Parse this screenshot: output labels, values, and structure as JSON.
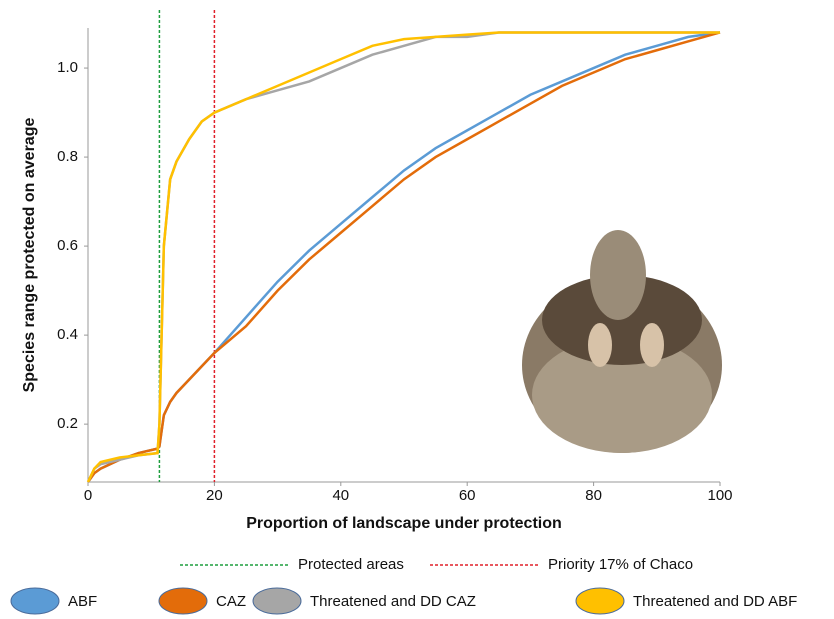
{
  "chart_data": {
    "type": "line",
    "x_label": "Proportion of landscape under protection",
    "y_label": "Species range protected on average",
    "x": [
      0,
      1,
      2,
      5,
      8,
      11,
      11.3,
      12,
      13,
      14,
      16,
      18,
      20,
      25,
      30,
      35,
      40,
      45,
      50,
      55,
      60,
      65,
      70,
      75,
      80,
      85,
      90,
      95,
      100
    ],
    "series": [
      {
        "name": "ABF",
        "color": "#5b9bd5",
        "values": [
          0.07,
          0.09,
          0.1,
          0.12,
          0.135,
          0.145,
          0.15,
          0.22,
          0.25,
          0.27,
          0.3,
          0.33,
          0.36,
          0.44,
          0.52,
          0.59,
          0.65,
          0.71,
          0.77,
          0.82,
          0.86,
          0.9,
          0.94,
          0.97,
          1.0,
          1.03,
          1.05,
          1.07,
          1.08
        ]
      },
      {
        "name": "CAZ",
        "color": "#e36c0a",
        "values": [
          0.07,
          0.09,
          0.1,
          0.12,
          0.135,
          0.145,
          0.15,
          0.22,
          0.25,
          0.27,
          0.3,
          0.33,
          0.36,
          0.42,
          0.5,
          0.57,
          0.63,
          0.69,
          0.75,
          0.8,
          0.84,
          0.88,
          0.92,
          0.96,
          0.99,
          1.02,
          1.04,
          1.06,
          1.08
        ]
      },
      {
        "name": "Threatened and DD CAZ",
        "color": "#a6a6a6",
        "values": [
          0.07,
          0.1,
          0.11,
          0.12,
          0.13,
          0.135,
          0.2,
          0.6,
          0.75,
          0.79,
          0.84,
          0.88,
          0.9,
          0.93,
          0.95,
          0.97,
          1.0,
          1.03,
          1.05,
          1.07,
          1.07,
          1.08,
          1.08,
          1.08,
          1.08,
          1.08,
          1.08,
          1.08,
          1.08
        ]
      },
      {
        "name": "Threatened and DD ABF",
        "color": "#ffc000",
        "values": [
          0.07,
          0.1,
          0.115,
          0.125,
          0.13,
          0.135,
          0.2,
          0.6,
          0.75,
          0.79,
          0.84,
          0.88,
          0.9,
          0.93,
          0.96,
          0.99,
          1.02,
          1.05,
          1.065,
          1.07,
          1.075,
          1.08,
          1.08,
          1.08,
          1.08,
          1.08,
          1.08,
          1.08,
          1.08
        ]
      }
    ],
    "reference_lines": [
      {
        "label": "Protected areas",
        "x": 11.3,
        "color": "#1e9e3e"
      },
      {
        "label": "Priority 17% of Chaco",
        "x": 20,
        "color": "#e0202a"
      }
    ],
    "xlim": [
      0,
      100
    ],
    "xticks": [
      0,
      20,
      40,
      60,
      80,
      100
    ],
    "ylim": [
      0.07,
      1.09
    ],
    "yticks": [
      0.2,
      0.4,
      0.6,
      0.8,
      {
        "value": 1,
        "label": "1.0"
      }
    ]
  }
}
